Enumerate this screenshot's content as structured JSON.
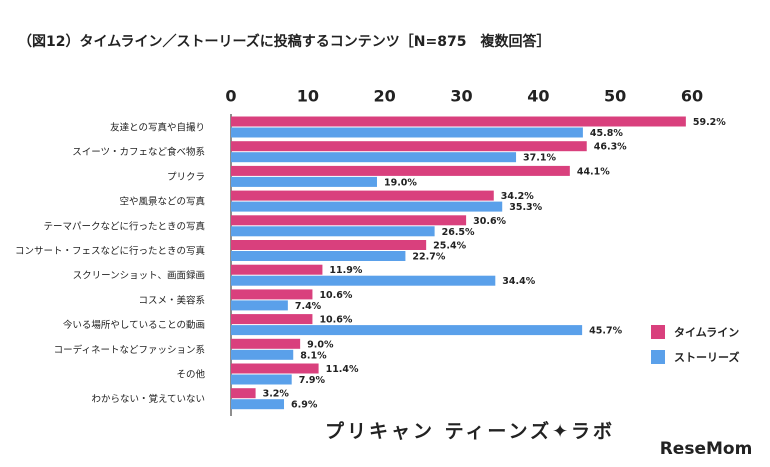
{
  "chart_data": {
    "type": "hbar",
    "title": "（図12）タイムライン／ストーリーズに投稿するコンテンツ［N=875　複数回答］",
    "categories": [
      "友達との写真や自撮り",
      "スイーツ・カフェなど食べ物系",
      "プリクラ",
      "空や風景などの写真",
      "テーマパークなどに行ったときの写真",
      "コンサート・フェスなどに行ったときの写真",
      "スクリーンショット、画面録画",
      "コスメ・美容系",
      "今いる場所やしていることの動画",
      "コーディネートなどファッション系",
      "その他",
      "わからない・覚えていない"
    ],
    "series": [
      {
        "name": "タイムライン",
        "color": "#d9407d",
        "values": [
          59.2,
          46.3,
          44.1,
          34.2,
          30.6,
          25.4,
          11.9,
          10.6,
          10.6,
          9.0,
          11.4,
          3.2
        ],
        "value_labels": [
          "59.2%",
          "46.3%",
          "44.1%",
          "34.2%",
          "30.6%",
          "25.4%",
          "11.9%",
          "10.6%",
          "10.6%",
          "9.0%",
          "11.4%",
          "3.2%"
        ]
      },
      {
        "name": "ストーリーズ",
        "color": "#5aa0ea",
        "values": [
          45.8,
          37.1,
          19.0,
          35.3,
          26.5,
          22.7,
          34.4,
          7.4,
          45.7,
          8.1,
          7.9,
          6.9
        ],
        "value_labels": [
          "45.8%",
          "37.1%",
          "19.0%",
          "35.3%",
          "26.5%",
          "22.7%",
          "34.4%",
          "7.4%",
          "45.7%",
          "8.1%",
          "7.9%",
          "6.9%"
        ]
      }
    ],
    "xlim": [
      0,
      60
    ],
    "xticks": [
      0,
      10,
      20,
      30,
      40,
      50,
      60
    ],
    "grid": false,
    "legend": "bottom-right",
    "brand": "プリキャン ティーンズ✦ラボ",
    "watermark": "ReseMom"
  }
}
